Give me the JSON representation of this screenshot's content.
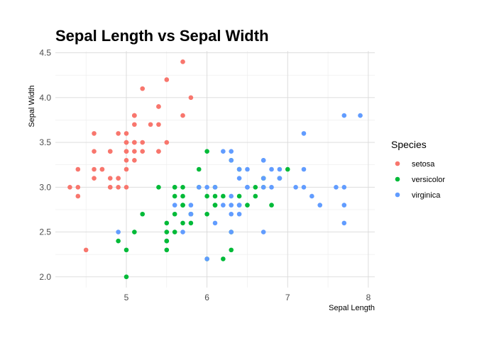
{
  "chart_data": {
    "type": "scatter",
    "title": "Sepal Length vs Sepal Width",
    "xlabel": "Sepal Length",
    "ylabel": "Sepal Width",
    "xlim": [
      4.3,
      7.9
    ],
    "ylim": [
      2.0,
      4.4
    ],
    "x_ticks": [
      5,
      6,
      7,
      8
    ],
    "y_ticks": [
      "2.0",
      "2.5",
      "3.0",
      "3.5",
      "4.0",
      "4.5"
    ],
    "grid": true,
    "legend": {
      "title": "Species",
      "position": "right"
    },
    "series": [
      {
        "name": "setosa",
        "color": "#F8766D",
        "points": [
          [
            5.1,
            3.5
          ],
          [
            4.9,
            3.0
          ],
          [
            4.7,
            3.2
          ],
          [
            4.6,
            3.1
          ],
          [
            5.0,
            3.6
          ],
          [
            5.4,
            3.9
          ],
          [
            4.6,
            3.4
          ],
          [
            5.0,
            3.4
          ],
          [
            4.4,
            2.9
          ],
          [
            4.9,
            3.1
          ],
          [
            5.4,
            3.7
          ],
          [
            4.8,
            3.4
          ],
          [
            4.8,
            3.0
          ],
          [
            4.3,
            3.0
          ],
          [
            5.8,
            4.0
          ],
          [
            5.7,
            4.4
          ],
          [
            5.4,
            3.9
          ],
          [
            5.1,
            3.5
          ],
          [
            5.7,
            3.8
          ],
          [
            5.1,
            3.8
          ],
          [
            5.4,
            3.4
          ],
          [
            5.1,
            3.7
          ],
          [
            4.6,
            3.6
          ],
          [
            5.1,
            3.3
          ],
          [
            4.8,
            3.4
          ],
          [
            5.0,
            3.0
          ],
          [
            5.0,
            3.4
          ],
          [
            5.2,
            3.5
          ],
          [
            5.2,
            3.4
          ],
          [
            4.7,
            3.2
          ],
          [
            4.8,
            3.1
          ],
          [
            5.4,
            3.4
          ],
          [
            5.2,
            4.1
          ],
          [
            5.5,
            4.2
          ],
          [
            4.9,
            3.1
          ],
          [
            5.0,
            3.2
          ],
          [
            5.5,
            3.5
          ],
          [
            4.9,
            3.6
          ],
          [
            4.4,
            3.0
          ],
          [
            5.1,
            3.4
          ],
          [
            5.0,
            3.5
          ],
          [
            4.5,
            2.3
          ],
          [
            4.4,
            3.2
          ],
          [
            5.0,
            3.5
          ],
          [
            5.1,
            3.8
          ],
          [
            4.8,
            3.0
          ],
          [
            5.1,
            3.8
          ],
          [
            4.6,
            3.2
          ],
          [
            5.3,
            3.7
          ],
          [
            5.0,
            3.3
          ]
        ]
      },
      {
        "name": "versicolor",
        "color": "#00BA38",
        "points": [
          [
            7.0,
            3.2
          ],
          [
            6.4,
            3.2
          ],
          [
            6.9,
            3.1
          ],
          [
            5.5,
            2.3
          ],
          [
            6.5,
            2.8
          ],
          [
            5.7,
            2.8
          ],
          [
            6.3,
            3.3
          ],
          [
            4.9,
            2.4
          ],
          [
            6.6,
            2.9
          ],
          [
            5.2,
            2.7
          ],
          [
            5.0,
            2.0
          ],
          [
            5.9,
            3.0
          ],
          [
            6.0,
            2.2
          ],
          [
            6.1,
            2.9
          ],
          [
            5.6,
            2.9
          ],
          [
            6.7,
            3.1
          ],
          [
            5.6,
            3.0
          ],
          [
            5.8,
            2.7
          ],
          [
            6.2,
            2.2
          ],
          [
            5.6,
            2.5
          ],
          [
            5.9,
            3.2
          ],
          [
            6.1,
            2.8
          ],
          [
            6.3,
            2.5
          ],
          [
            6.1,
            2.8
          ],
          [
            6.4,
            2.9
          ],
          [
            6.6,
            3.0
          ],
          [
            6.8,
            2.8
          ],
          [
            6.7,
            3.0
          ],
          [
            6.0,
            2.9
          ],
          [
            5.7,
            2.6
          ],
          [
            5.5,
            2.4
          ],
          [
            5.5,
            2.4
          ],
          [
            5.8,
            2.7
          ],
          [
            6.0,
            2.7
          ],
          [
            5.4,
            3.0
          ],
          [
            6.0,
            3.4
          ],
          [
            6.7,
            3.1
          ],
          [
            6.3,
            2.3
          ],
          [
            5.6,
            3.0
          ],
          [
            5.5,
            2.5
          ],
          [
            5.5,
            2.6
          ],
          [
            6.1,
            3.0
          ],
          [
            5.8,
            2.6
          ],
          [
            5.0,
            2.3
          ],
          [
            5.6,
            2.7
          ],
          [
            5.7,
            3.0
          ],
          [
            5.7,
            2.9
          ],
          [
            6.2,
            2.9
          ],
          [
            5.1,
            2.5
          ],
          [
            5.7,
            2.8
          ]
        ]
      },
      {
        "name": "virginica",
        "color": "#619CFF",
        "points": [
          [
            6.3,
            3.3
          ],
          [
            5.8,
            2.7
          ],
          [
            7.1,
            3.0
          ],
          [
            6.3,
            2.9
          ],
          [
            6.5,
            3.0
          ],
          [
            7.6,
            3.0
          ],
          [
            4.9,
            2.5
          ],
          [
            7.3,
            2.9
          ],
          [
            6.7,
            2.5
          ],
          [
            7.2,
            3.6
          ],
          [
            6.5,
            3.2
          ],
          [
            6.4,
            2.7
          ],
          [
            6.8,
            3.0
          ],
          [
            5.7,
            2.5
          ],
          [
            5.8,
            2.8
          ],
          [
            6.4,
            3.2
          ],
          [
            6.5,
            3.0
          ],
          [
            7.7,
            3.8
          ],
          [
            7.7,
            2.6
          ],
          [
            6.0,
            2.2
          ],
          [
            6.9,
            3.2
          ],
          [
            5.6,
            2.8
          ],
          [
            7.7,
            2.8
          ],
          [
            6.3,
            2.7
          ],
          [
            6.7,
            3.3
          ],
          [
            7.2,
            3.2
          ],
          [
            6.2,
            2.8
          ],
          [
            6.1,
            3.0
          ],
          [
            6.4,
            2.8
          ],
          [
            7.2,
            3.0
          ],
          [
            7.4,
            2.8
          ],
          [
            7.9,
            3.8
          ],
          [
            6.4,
            2.8
          ],
          [
            6.3,
            2.8
          ],
          [
            6.1,
            2.6
          ],
          [
            7.7,
            3.0
          ],
          [
            6.3,
            3.4
          ],
          [
            6.4,
            3.1
          ],
          [
            6.0,
            3.0
          ],
          [
            6.9,
            3.1
          ],
          [
            6.7,
            3.1
          ],
          [
            6.9,
            3.1
          ],
          [
            5.8,
            2.7
          ],
          [
            6.8,
            3.2
          ],
          [
            6.7,
            3.3
          ],
          [
            6.7,
            3.0
          ],
          [
            6.3,
            2.5
          ],
          [
            6.5,
            3.0
          ],
          [
            6.2,
            3.4
          ],
          [
            5.9,
            3.0
          ]
        ]
      }
    ]
  }
}
